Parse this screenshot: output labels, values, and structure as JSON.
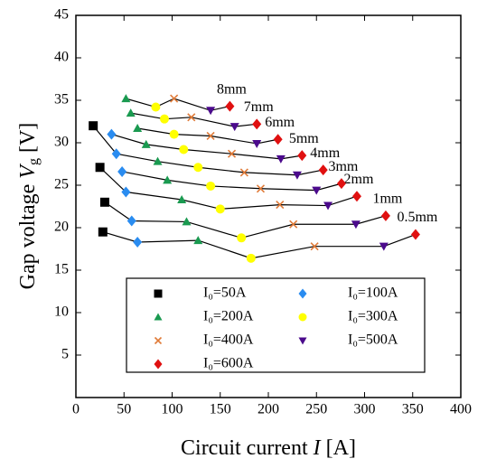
{
  "chart_data": {
    "type": "scatter",
    "x_label": {
      "text": "Circuit current ",
      "var": "I",
      "unit": " [A]"
    },
    "y_label": {
      "text": "Gap voltage ",
      "var": "V",
      "sub": "g",
      "unit": " [V]"
    },
    "xlim": [
      0,
      400
    ],
    "ylim": [
      0,
      45
    ],
    "xticks": [
      0,
      50,
      100,
      150,
      200,
      250,
      300,
      350,
      400
    ],
    "yticks": [
      5,
      10,
      15,
      20,
      25,
      30,
      35,
      40,
      45
    ],
    "gap_labels": [
      "8mm",
      "7mm",
      "6mm",
      "5mm",
      "4mm",
      "3mm",
      "2mm",
      "1mm",
      "0.5mm"
    ],
    "series": [
      {
        "name": "I₀=50A",
        "color": "#000000",
        "marker": "square",
        "x": [
          18,
          25,
          30,
          28
        ],
        "y": [
          32,
          27.1,
          23,
          19.5
        ],
        "gaps": [
          "4mm",
          "2mm",
          "1mm",
          "0.5mm"
        ]
      },
      {
        "name": "I₀=100A",
        "color": "#2a8cf0",
        "marker": "diamond",
        "x": [
          37,
          42,
          48,
          52,
          58,
          64
        ],
        "y": [
          31,
          28.7,
          26.6,
          24.2,
          20.8,
          18.3
        ],
        "gaps": [
          "5mm",
          "4mm",
          "3mm",
          "2mm",
          "1mm",
          "0.5mm"
        ]
      },
      {
        "name": "I₀=200A",
        "color": "#1a9a50",
        "marker": "triangle-up",
        "x": [
          52,
          57,
          64,
          73,
          85,
          95,
          110,
          115,
          127
        ],
        "y": [
          35.2,
          33.5,
          31.7,
          29.8,
          27.8,
          25.6,
          23.3,
          20.7,
          18.5
        ],
        "gaps": [
          "8mm",
          "7mm",
          "6mm",
          "5mm",
          "4mm",
          "3mm",
          "2mm",
          "1mm",
          "0.5mm"
        ]
      },
      {
        "name": "I₀=300A",
        "color": "#ffff00",
        "marker": "circle",
        "x": [
          83,
          92,
          102,
          112,
          127,
          140,
          150,
          172,
          182
        ],
        "y": [
          34.2,
          32.8,
          31,
          29.2,
          27.1,
          24.9,
          22.2,
          18.8,
          16.4
        ],
        "gaps": [
          "8mm",
          "7mm",
          "6mm",
          "5mm",
          "4mm",
          "3mm",
          "2mm",
          "1mm",
          "0.5mm"
        ]
      },
      {
        "name": "I₀=400A",
        "color": "#e07b39",
        "marker": "x",
        "x": [
          102,
          120,
          140,
          162,
          175,
          192,
          212,
          226,
          248
        ],
        "y": [
          35.2,
          33,
          30.8,
          28.7,
          26.5,
          24.6,
          22.7,
          20.4,
          17.8
        ],
        "gaps": [
          "8mm",
          "7mm",
          "6mm",
          "5mm",
          "4mm",
          "3mm",
          "2mm",
          "1mm",
          "0.5mm"
        ]
      },
      {
        "name": "I₀=500A",
        "color": "#4b0a8c",
        "marker": "triangle-down",
        "x": [
          140,
          165,
          188,
          213,
          230,
          250,
          262,
          291,
          320
        ],
        "y": [
          33.8,
          31.9,
          29.9,
          28.1,
          26.2,
          24.4,
          22.6,
          20.4,
          17.8
        ],
        "gaps": [
          "8mm",
          "7mm",
          "6mm",
          "5mm",
          "4mm",
          "3mm",
          "2mm",
          "1mm",
          "0.5mm"
        ]
      },
      {
        "name": "I₀=600A",
        "color": "#e01010",
        "marker": "diamond",
        "x": [
          160,
          188,
          210,
          235,
          257,
          276,
          292,
          322,
          353
        ],
        "y": [
          34.3,
          32.2,
          30.4,
          28.5,
          26.8,
          25.2,
          23.7,
          21.4,
          19.2
        ],
        "gaps": [
          "8mm",
          "7mm",
          "6mm",
          "5mm",
          "4mm",
          "3mm",
          "2mm",
          "1mm",
          "0.5mm"
        ]
      }
    ]
  }
}
